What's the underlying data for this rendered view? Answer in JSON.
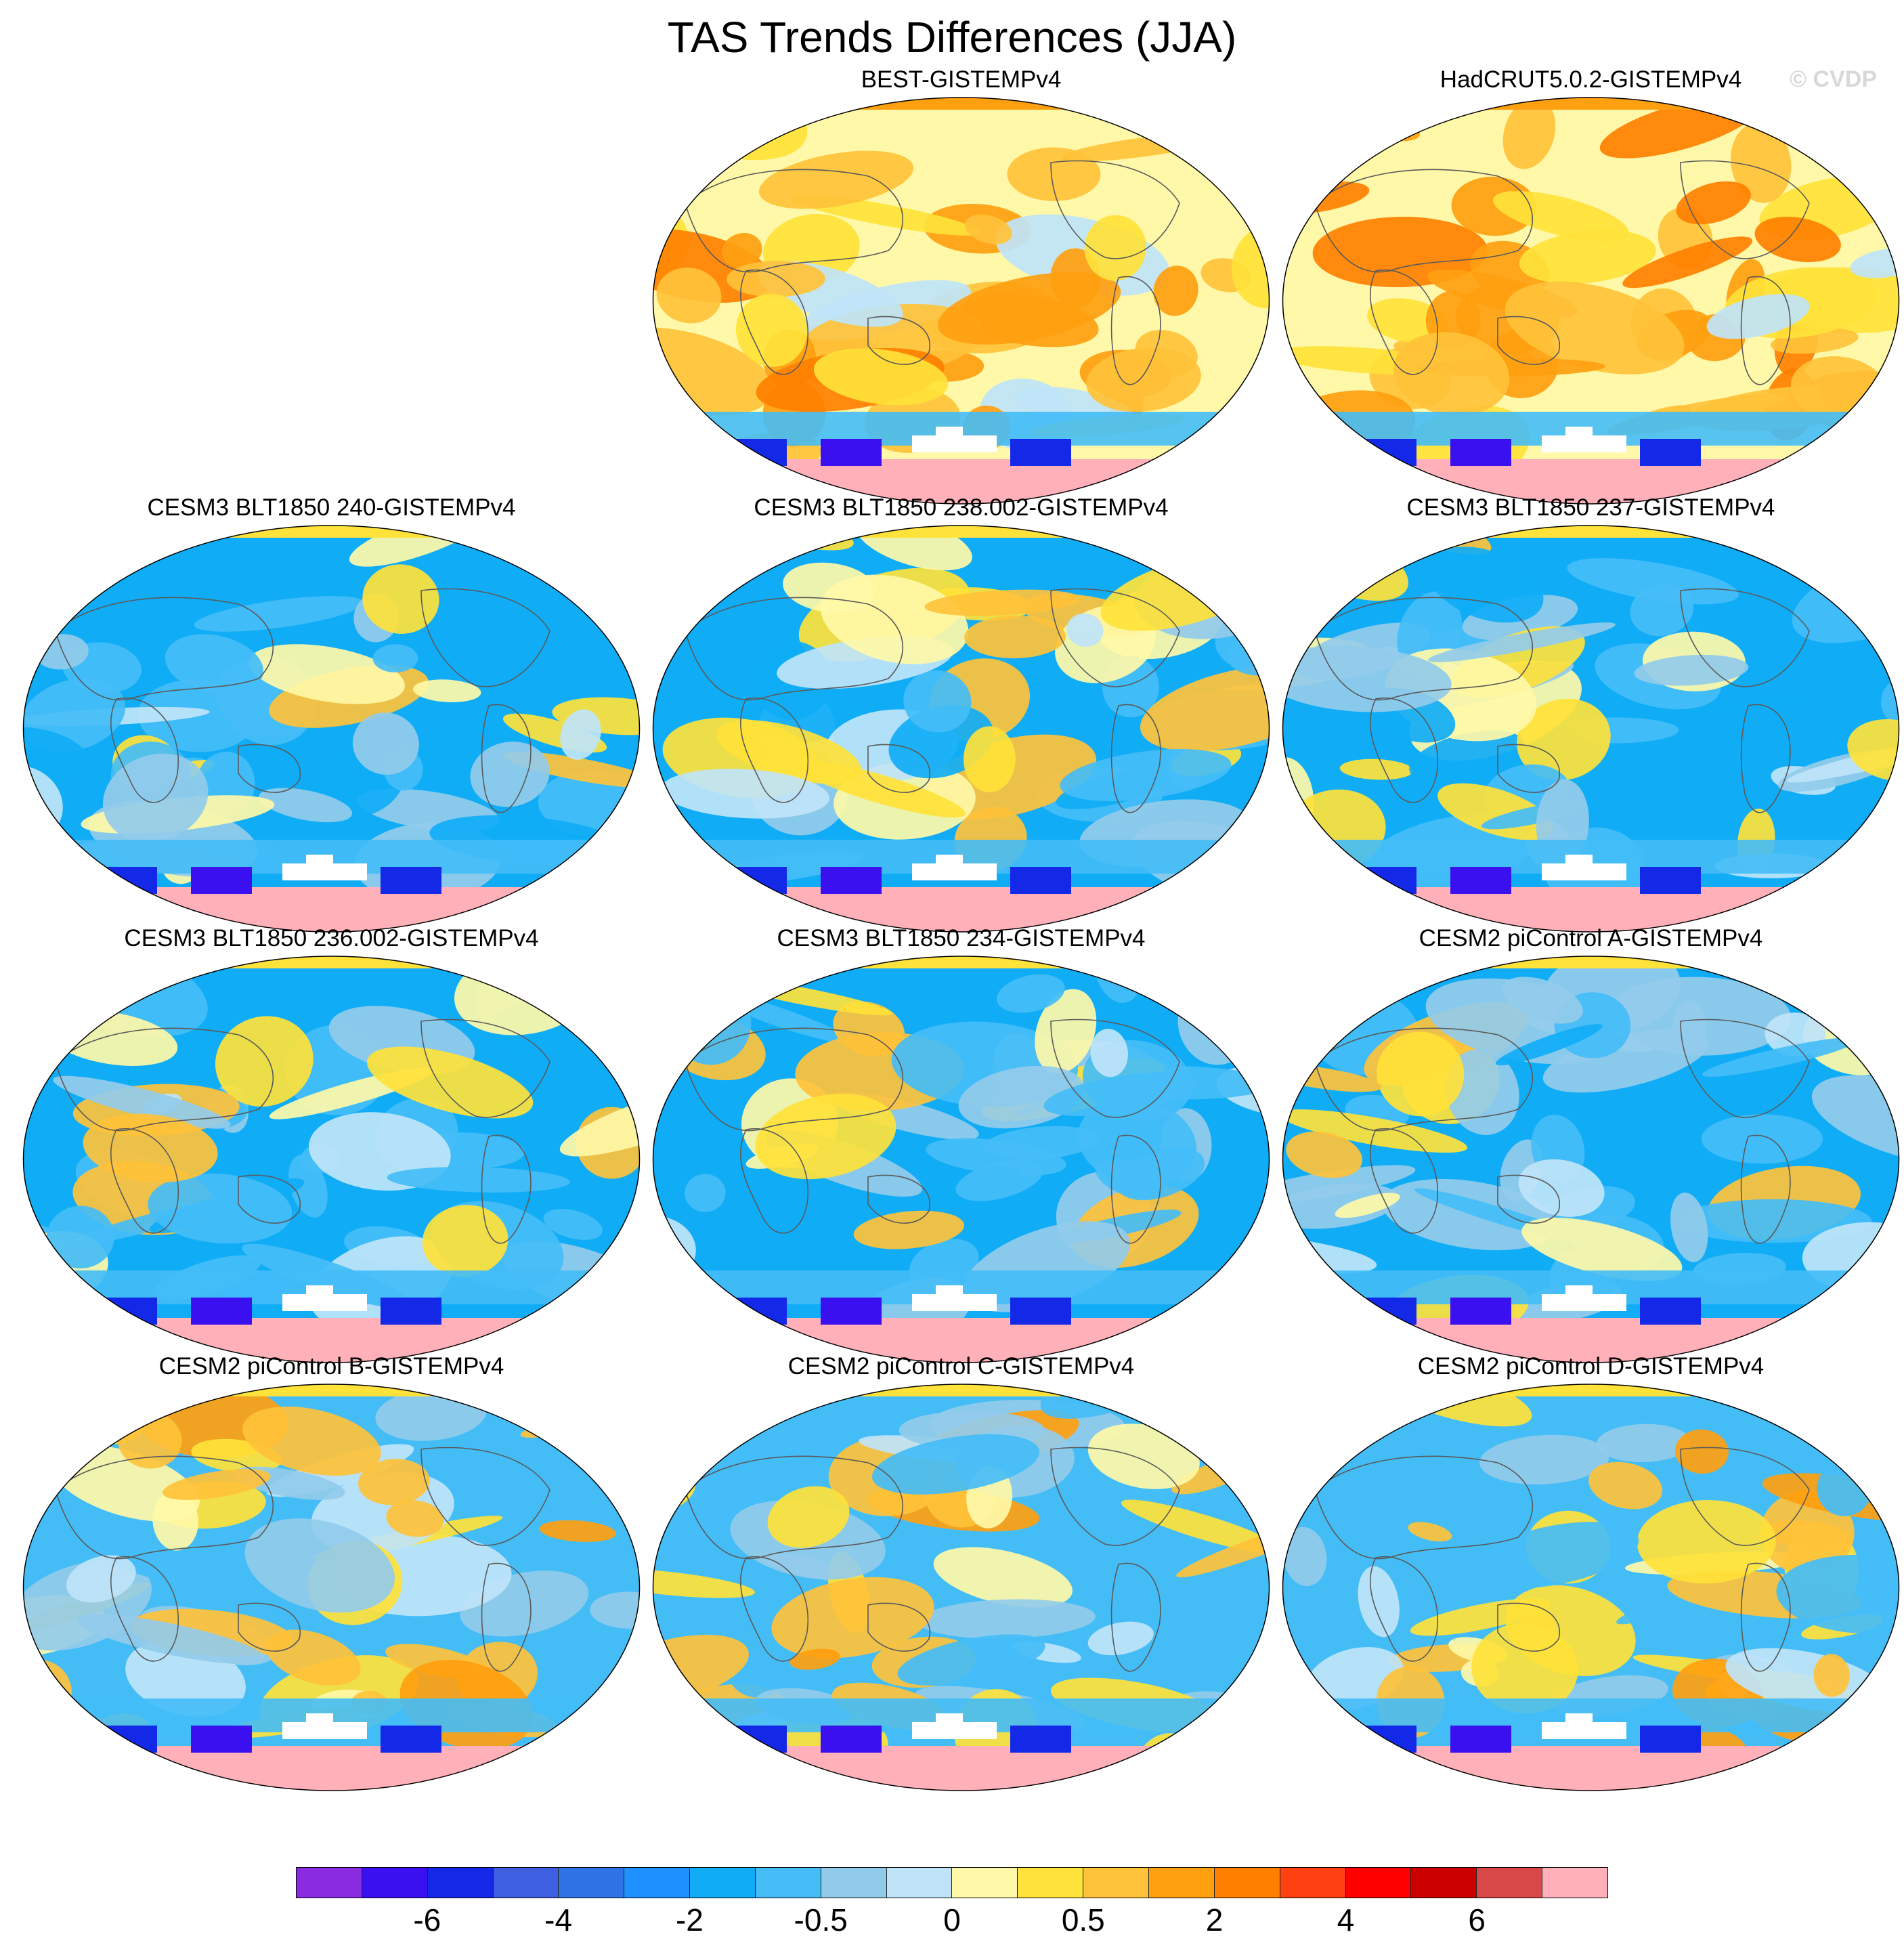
{
  "title": "TAS Trends Differences (JJA)",
  "watermark": "© CVDP",
  "panels": [
    {
      "title": "",
      "empty": true
    },
    {
      "title": "BEST-GISTEMPv4",
      "mean_anomaly": "warm",
      "seed": 11
    },
    {
      "title": "HadCRUT5.0.2-GISTEMPv4",
      "mean_anomaly": "warm",
      "seed": 23
    },
    {
      "title": "CESM3 BLT1850 240-GISTEMPv4",
      "mean_anomaly": "cool",
      "seed": 37
    },
    {
      "title": "CESM3 BLT1850 238.002-GISTEMPv4",
      "mean_anomaly": "cool",
      "seed": 41
    },
    {
      "title": "CESM3 BLT1850 237-GISTEMPv4",
      "mean_anomaly": "cool",
      "seed": 53
    },
    {
      "title": "CESM3 BLT1850 236.002-GISTEMPv4",
      "mean_anomaly": "cool",
      "seed": 67
    },
    {
      "title": "CESM3 BLT1850 234-GISTEMPv4",
      "mean_anomaly": "cool",
      "seed": 71
    },
    {
      "title": "CESM2 piControl A-GISTEMPv4",
      "mean_anomaly": "cool",
      "seed": 83
    },
    {
      "title": "CESM2 piControl B-GISTEMPv4",
      "mean_anomaly": "mixed",
      "seed": 97
    },
    {
      "title": "CESM2 piControl C-GISTEMPv4",
      "mean_anomaly": "mixed",
      "seed": 101
    },
    {
      "title": "CESM2 piControl D-GISTEMPv4",
      "mean_anomaly": "mixed",
      "seed": 113
    }
  ],
  "colorbar": {
    "colors": [
      "#8a2be2",
      "#3a10f0",
      "#1428e8",
      "#3d5fe0",
      "#2f74e6",
      "#1e90ff",
      "#10acf6",
      "#44bdf7",
      "#92cbea",
      "#bfe4f8",
      "#fff8a8",
      "#ffe23a",
      "#ffc23a",
      "#ffa010",
      "#ff8000",
      "#ff4010",
      "#ff0000",
      "#cc0000",
      "#d84848",
      "#ffb0b8"
    ],
    "labels": [
      "-6",
      "-4",
      "-2",
      "-0.5",
      "0",
      "0.5",
      "2",
      "4",
      "6"
    ],
    "label_boundaries": [
      2,
      4,
      6,
      8,
      10,
      12,
      14,
      16,
      18
    ]
  },
  "missing_color": "#ffffff",
  "antarctic_color": "#ffb0b8"
}
